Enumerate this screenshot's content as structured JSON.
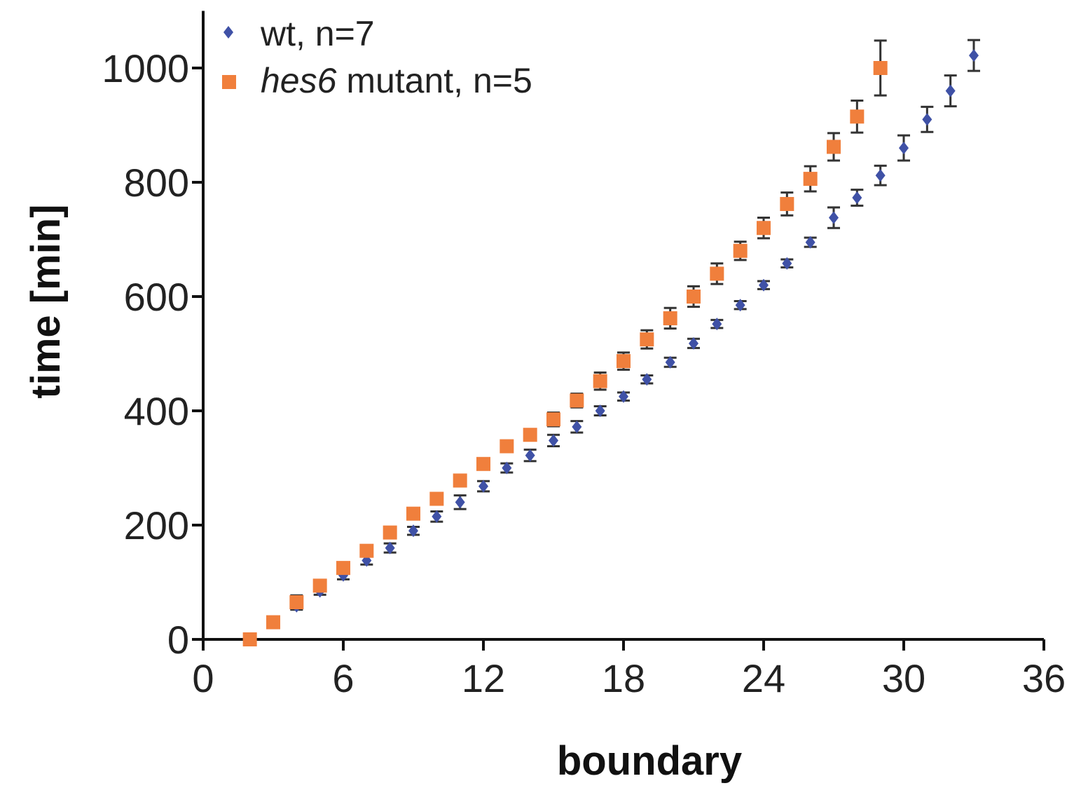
{
  "chart_data": {
    "type": "scatter",
    "title": "",
    "xlabel": "boundary",
    "ylabel": "time [min]",
    "xlim": [
      0,
      36
    ],
    "ylim": [
      0,
      1100
    ],
    "xticks": [
      0,
      6,
      12,
      18,
      24,
      30,
      36
    ],
    "yticks": [
      0,
      200,
      400,
      600,
      800,
      1000
    ],
    "grid": false,
    "legend_position": "top-left",
    "error_bars": true,
    "series": [
      {
        "name": "wt, n=7",
        "marker": "diamond",
        "color": "#3f51a6",
        "points": [
          {
            "x": 2,
            "y": 0,
            "err": 0
          },
          {
            "x": 3,
            "y": 30,
            "err": 4
          },
          {
            "x": 4,
            "y": 58,
            "err": 6
          },
          {
            "x": 5,
            "y": 84,
            "err": 6
          },
          {
            "x": 6,
            "y": 112,
            "err": 7
          },
          {
            "x": 7,
            "y": 138,
            "err": 7
          },
          {
            "x": 8,
            "y": 160,
            "err": 8
          },
          {
            "x": 9,
            "y": 190,
            "err": 7
          },
          {
            "x": 10,
            "y": 215,
            "err": 9
          },
          {
            "x": 11,
            "y": 240,
            "err": 12
          },
          {
            "x": 12,
            "y": 268,
            "err": 9
          },
          {
            "x": 13,
            "y": 300,
            "err": 8
          },
          {
            "x": 14,
            "y": 322,
            "err": 10
          },
          {
            "x": 15,
            "y": 348,
            "err": 10
          },
          {
            "x": 16,
            "y": 372,
            "err": 10
          },
          {
            "x": 17,
            "y": 400,
            "err": 8
          },
          {
            "x": 18,
            "y": 425,
            "err": 7
          },
          {
            "x": 19,
            "y": 455,
            "err": 7
          },
          {
            "x": 20,
            "y": 485,
            "err": 8
          },
          {
            "x": 21,
            "y": 518,
            "err": 8
          },
          {
            "x": 22,
            "y": 552,
            "err": 7
          },
          {
            "x": 23,
            "y": 585,
            "err": 7
          },
          {
            "x": 24,
            "y": 620,
            "err": 7
          },
          {
            "x": 25,
            "y": 658,
            "err": 7
          },
          {
            "x": 26,
            "y": 695,
            "err": 8
          },
          {
            "x": 27,
            "y": 738,
            "err": 18
          },
          {
            "x": 28,
            "y": 773,
            "err": 14
          },
          {
            "x": 29,
            "y": 812,
            "err": 17
          },
          {
            "x": 30,
            "y": 860,
            "err": 22
          },
          {
            "x": 31,
            "y": 910,
            "err": 22
          },
          {
            "x": 32,
            "y": 960,
            "err": 27
          },
          {
            "x": 33,
            "y": 1022,
            "err": 27
          }
        ]
      },
      {
        "name": "hes6 mutant, n=5",
        "marker": "square",
        "color": "#f07f3c",
        "points": [
          {
            "x": 2,
            "y": 0,
            "err": 0
          },
          {
            "x": 3,
            "y": 30,
            "err": 8
          },
          {
            "x": 4,
            "y": 65,
            "err": 12
          },
          {
            "x": 5,
            "y": 94,
            "err": 10
          },
          {
            "x": 6,
            "y": 125,
            "err": 10
          },
          {
            "x": 7,
            "y": 155,
            "err": 10
          },
          {
            "x": 8,
            "y": 187,
            "err": 10
          },
          {
            "x": 9,
            "y": 220,
            "err": 10
          },
          {
            "x": 10,
            "y": 246,
            "err": 10
          },
          {
            "x": 11,
            "y": 278,
            "err": 10
          },
          {
            "x": 12,
            "y": 307,
            "err": 10
          },
          {
            "x": 13,
            "y": 338,
            "err": 10
          },
          {
            "x": 14,
            "y": 358,
            "err": 10
          },
          {
            "x": 15,
            "y": 385,
            "err": 12
          },
          {
            "x": 16,
            "y": 418,
            "err": 12
          },
          {
            "x": 17,
            "y": 452,
            "err": 15
          },
          {
            "x": 18,
            "y": 487,
            "err": 15
          },
          {
            "x": 19,
            "y": 525,
            "err": 16
          },
          {
            "x": 20,
            "y": 562,
            "err": 18
          },
          {
            "x": 21,
            "y": 600,
            "err": 18
          },
          {
            "x": 22,
            "y": 640,
            "err": 18
          },
          {
            "x": 23,
            "y": 680,
            "err": 16
          },
          {
            "x": 24,
            "y": 720,
            "err": 18
          },
          {
            "x": 25,
            "y": 762,
            "err": 20
          },
          {
            "x": 26,
            "y": 806,
            "err": 22
          },
          {
            "x": 27,
            "y": 862,
            "err": 24
          },
          {
            "x": 28,
            "y": 915,
            "err": 28
          },
          {
            "x": 29,
            "y": 1000,
            "err": 48
          }
        ]
      }
    ]
  },
  "legend": {
    "wt_label": "wt, n=7",
    "hes6_italic": "hes6",
    "hes6_rest": " mutant, n=5"
  }
}
